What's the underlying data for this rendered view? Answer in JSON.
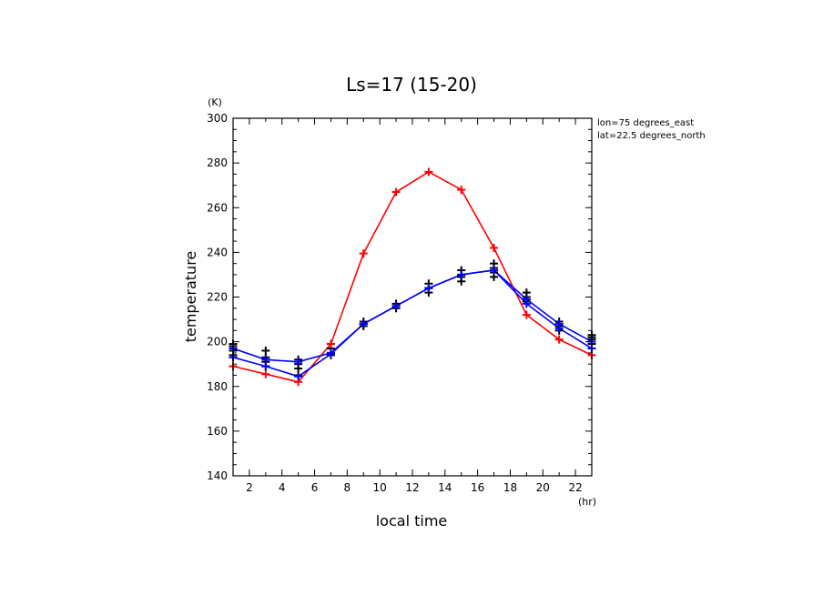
{
  "chart_data": {
    "type": "line",
    "title": "Ls=17 (15-20)",
    "xlabel": "local time",
    "ylabel": "temperature",
    "x_unit": "(hr)",
    "y_unit": "(K)",
    "info_lines": [
      "lon=75 degrees_east",
      "lat=22.5 degrees_north"
    ],
    "xlim": [
      1,
      23
    ],
    "ylim": [
      140,
      300
    ],
    "xticks": [
      2,
      4,
      6,
      8,
      10,
      12,
      14,
      16,
      18,
      20,
      22
    ],
    "yticks": [
      140,
      160,
      180,
      200,
      220,
      240,
      260,
      280,
      300
    ],
    "x": [
      1,
      3,
      5,
      7,
      9,
      11,
      13,
      15,
      17,
      19,
      21,
      23
    ],
    "grid": false,
    "series": [
      {
        "color": "#ff0000",
        "marker": "plus",
        "values": [
          189,
          185.5,
          182,
          199,
          239.5,
          267,
          276,
          268,
          242,
          212,
          201,
          194
        ]
      },
      {
        "color": "#0000ff",
        "marker": "plus",
        "values": [
          197,
          192,
          191,
          195,
          208,
          216,
          224,
          230,
          232,
          219,
          208,
          200
        ]
      },
      {
        "color": "#0000ff",
        "marker": "plus",
        "values": [
          193,
          189,
          184.5,
          194.5,
          208,
          216,
          224,
          230,
          232,
          217,
          206,
          197
        ]
      }
    ],
    "scatter_points": {
      "color": "#000000",
      "marker": "plus",
      "points": [
        [
          1,
          198
        ],
        [
          1,
          196
        ],
        [
          1,
          194
        ],
        [
          1,
          199
        ],
        [
          3,
          196
        ],
        [
          3,
          193
        ],
        [
          3,
          189
        ],
        [
          3,
          191
        ],
        [
          5,
          192
        ],
        [
          5,
          190
        ],
        [
          5,
          185
        ],
        [
          5,
          188
        ],
        [
          7,
          197
        ],
        [
          7,
          195
        ],
        [
          7,
          194
        ],
        [
          7,
          199
        ],
        [
          9,
          209
        ],
        [
          9,
          207
        ],
        [
          9,
          208
        ],
        [
          11,
          217
        ],
        [
          11,
          215
        ],
        [
          13,
          226
        ],
        [
          13,
          224
        ],
        [
          13,
          222
        ],
        [
          15,
          232
        ],
        [
          15,
          230
        ],
        [
          15,
          227
        ],
        [
          15,
          229
        ],
        [
          17,
          235
        ],
        [
          17,
          233
        ],
        [
          17,
          229
        ],
        [
          17,
          231
        ],
        [
          19,
          222
        ],
        [
          19,
          220
        ],
        [
          19,
          218
        ],
        [
          21,
          209
        ],
        [
          21,
          207
        ],
        [
          21,
          205
        ],
        [
          23,
          203
        ],
        [
          23,
          201
        ],
        [
          23,
          199
        ],
        [
          23,
          202
        ]
      ]
    }
  }
}
